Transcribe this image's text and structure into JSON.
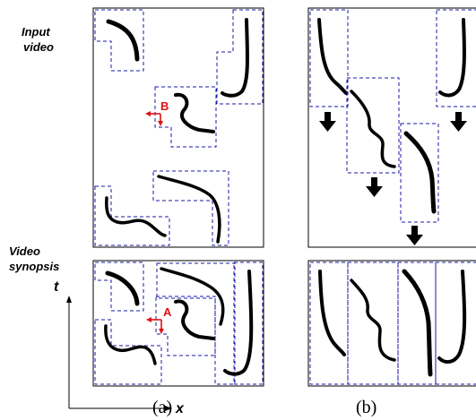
{
  "labels": {
    "input_line1": "Input",
    "input_line2": "video",
    "synopsis_line1": "Video",
    "synopsis_line2": "synopsis",
    "axis_t": "t",
    "axis_x": "x",
    "marker_a": "A",
    "marker_b": "B",
    "caption_a": "(a)",
    "caption_b": "(b)"
  },
  "colors": {
    "box_dash": "#1a1aaa",
    "marker": "#e01010",
    "ink": "#000000"
  }
}
